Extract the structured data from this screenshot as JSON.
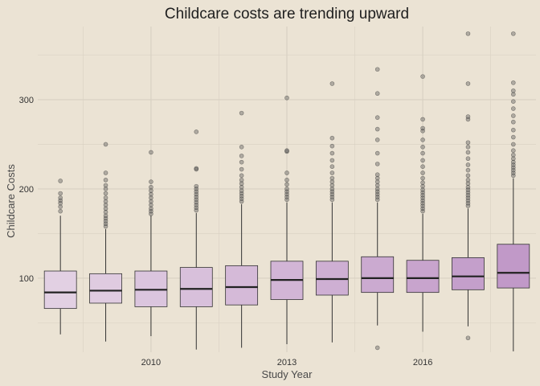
{
  "chart_data": {
    "type": "boxplot",
    "title": "Childcare costs are trending upward",
    "xlabel": "Study Year",
    "ylabel": "Childcare Costs",
    "x_tick_labels": [
      {
        "year": 2010,
        "label": "2010"
      },
      {
        "year": 2013,
        "label": "2013"
      },
      {
        "year": 2016,
        "label": "2016"
      }
    ],
    "y_ticks": [
      100,
      200,
      300
    ],
    "xlim": [
      2007.5,
      2018.5
    ],
    "ylim": [
      17,
      382
    ],
    "grid": true,
    "legend": "none",
    "colors": {
      "background": "#ebe3d4",
      "grid": "#d8d0c2",
      "box_light": "#e2d0e3",
      "box_dark": "#c199c8",
      "outline": "#333333",
      "outlier": "#555555"
    },
    "boxes": [
      {
        "year": 2008,
        "q1": 66,
        "median": 84,
        "q3": 108,
        "whisker_low": 37,
        "whisker_high": 170,
        "outliers": [
          175,
          180,
          184,
          187,
          190,
          195,
          209
        ]
      },
      {
        "year": 2009,
        "q1": 72,
        "median": 86,
        "q3": 105,
        "whisker_low": 29,
        "whisker_high": 155,
        "outliers": [
          158,
          161,
          164,
          167,
          170,
          174,
          178,
          182,
          186,
          190,
          195,
          200,
          204,
          210,
          218,
          250
        ]
      },
      {
        "year": 2010,
        "q1": 68,
        "median": 87,
        "q3": 108,
        "whisker_low": 35,
        "whisker_high": 170,
        "outliers": [
          172,
          175,
          178,
          182,
          186,
          190,
          194,
          198,
          202,
          208,
          241
        ]
      },
      {
        "year": 2011,
        "q1": 68,
        "median": 88,
        "q3": 112,
        "whisker_low": 20,
        "whisker_high": 173,
        "outliers": [
          176,
          179,
          182,
          185,
          188,
          191,
          194,
          197,
          200,
          203,
          222,
          223,
          264
        ]
      },
      {
        "year": 2012,
        "q1": 70,
        "median": 90,
        "q3": 114,
        "whisker_low": 22,
        "whisker_high": 183,
        "outliers": [
          186,
          189,
          192,
          195,
          198,
          202,
          206,
          210,
          215,
          222,
          230,
          237,
          247,
          285
        ]
      },
      {
        "year": 2013,
        "q1": 76,
        "median": 98,
        "q3": 119,
        "whisker_low": 26,
        "whisker_high": 185,
        "outliers": [
          188,
          191,
          194,
          197,
          200,
          205,
          210,
          218,
          242,
          243,
          302
        ]
      },
      {
        "year": 2014,
        "q1": 81,
        "median": 99,
        "q3": 119,
        "whisker_low": 28,
        "whisker_high": 185,
        "outliers": [
          188,
          191,
          194,
          197,
          200,
          204,
          208,
          212,
          218,
          225,
          232,
          240,
          248,
          257,
          318
        ]
      },
      {
        "year": 2015,
        "q1": 84,
        "median": 100,
        "q3": 124,
        "whisker_low": 47,
        "whisker_high": 185,
        "outliers": [
          188,
          191,
          194,
          197,
          200,
          204,
          208,
          212,
          216,
          228,
          240,
          255,
          267,
          280,
          307,
          334,
          22
        ]
      },
      {
        "year": 2016,
        "q1": 84,
        "median": 100,
        "q3": 120,
        "whisker_low": 40,
        "whisker_high": 172,
        "outliers": [
          175,
          178,
          181,
          184,
          187,
          190,
          193,
          196,
          199,
          203,
          207,
          212,
          218,
          225,
          232,
          240,
          247,
          255,
          265,
          268,
          278,
          326
        ]
      },
      {
        "year": 2017,
        "q1": 87,
        "median": 102,
        "q3": 123,
        "whisker_low": 46,
        "whisker_high": 178,
        "outliers": [
          181,
          184,
          187,
          190,
          193,
          196,
          199,
          202,
          206,
          210,
          215,
          221,
          227,
          234,
          241,
          247,
          252,
          278,
          281,
          318,
          374,
          33
        ]
      },
      {
        "year": 2018,
        "q1": 89,
        "median": 106,
        "q3": 138,
        "whisker_low": 18,
        "whisker_high": 212,
        "outliers": [
          215,
          218,
          221,
          224,
          227,
          230,
          234,
          238,
          243,
          250,
          258,
          266,
          275,
          282,
          290,
          298,
          306,
          310,
          319,
          374
        ]
      }
    ]
  }
}
